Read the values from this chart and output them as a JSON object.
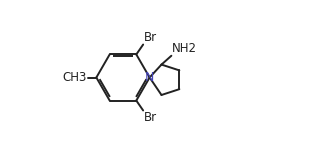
{
  "bg_color": "#ffffff",
  "line_color": "#222222",
  "line_width": 1.4,
  "text_color": "#222222",
  "label_color_N": "#4444bb",
  "font_size": 8.5,
  "figsize": [
    3.16,
    1.55
  ],
  "dpi": 100,
  "br_top_label": "Br",
  "br_bot_label": "Br",
  "n_label": "N",
  "nh2_label": "NH2",
  "methyl_label": "CH3"
}
